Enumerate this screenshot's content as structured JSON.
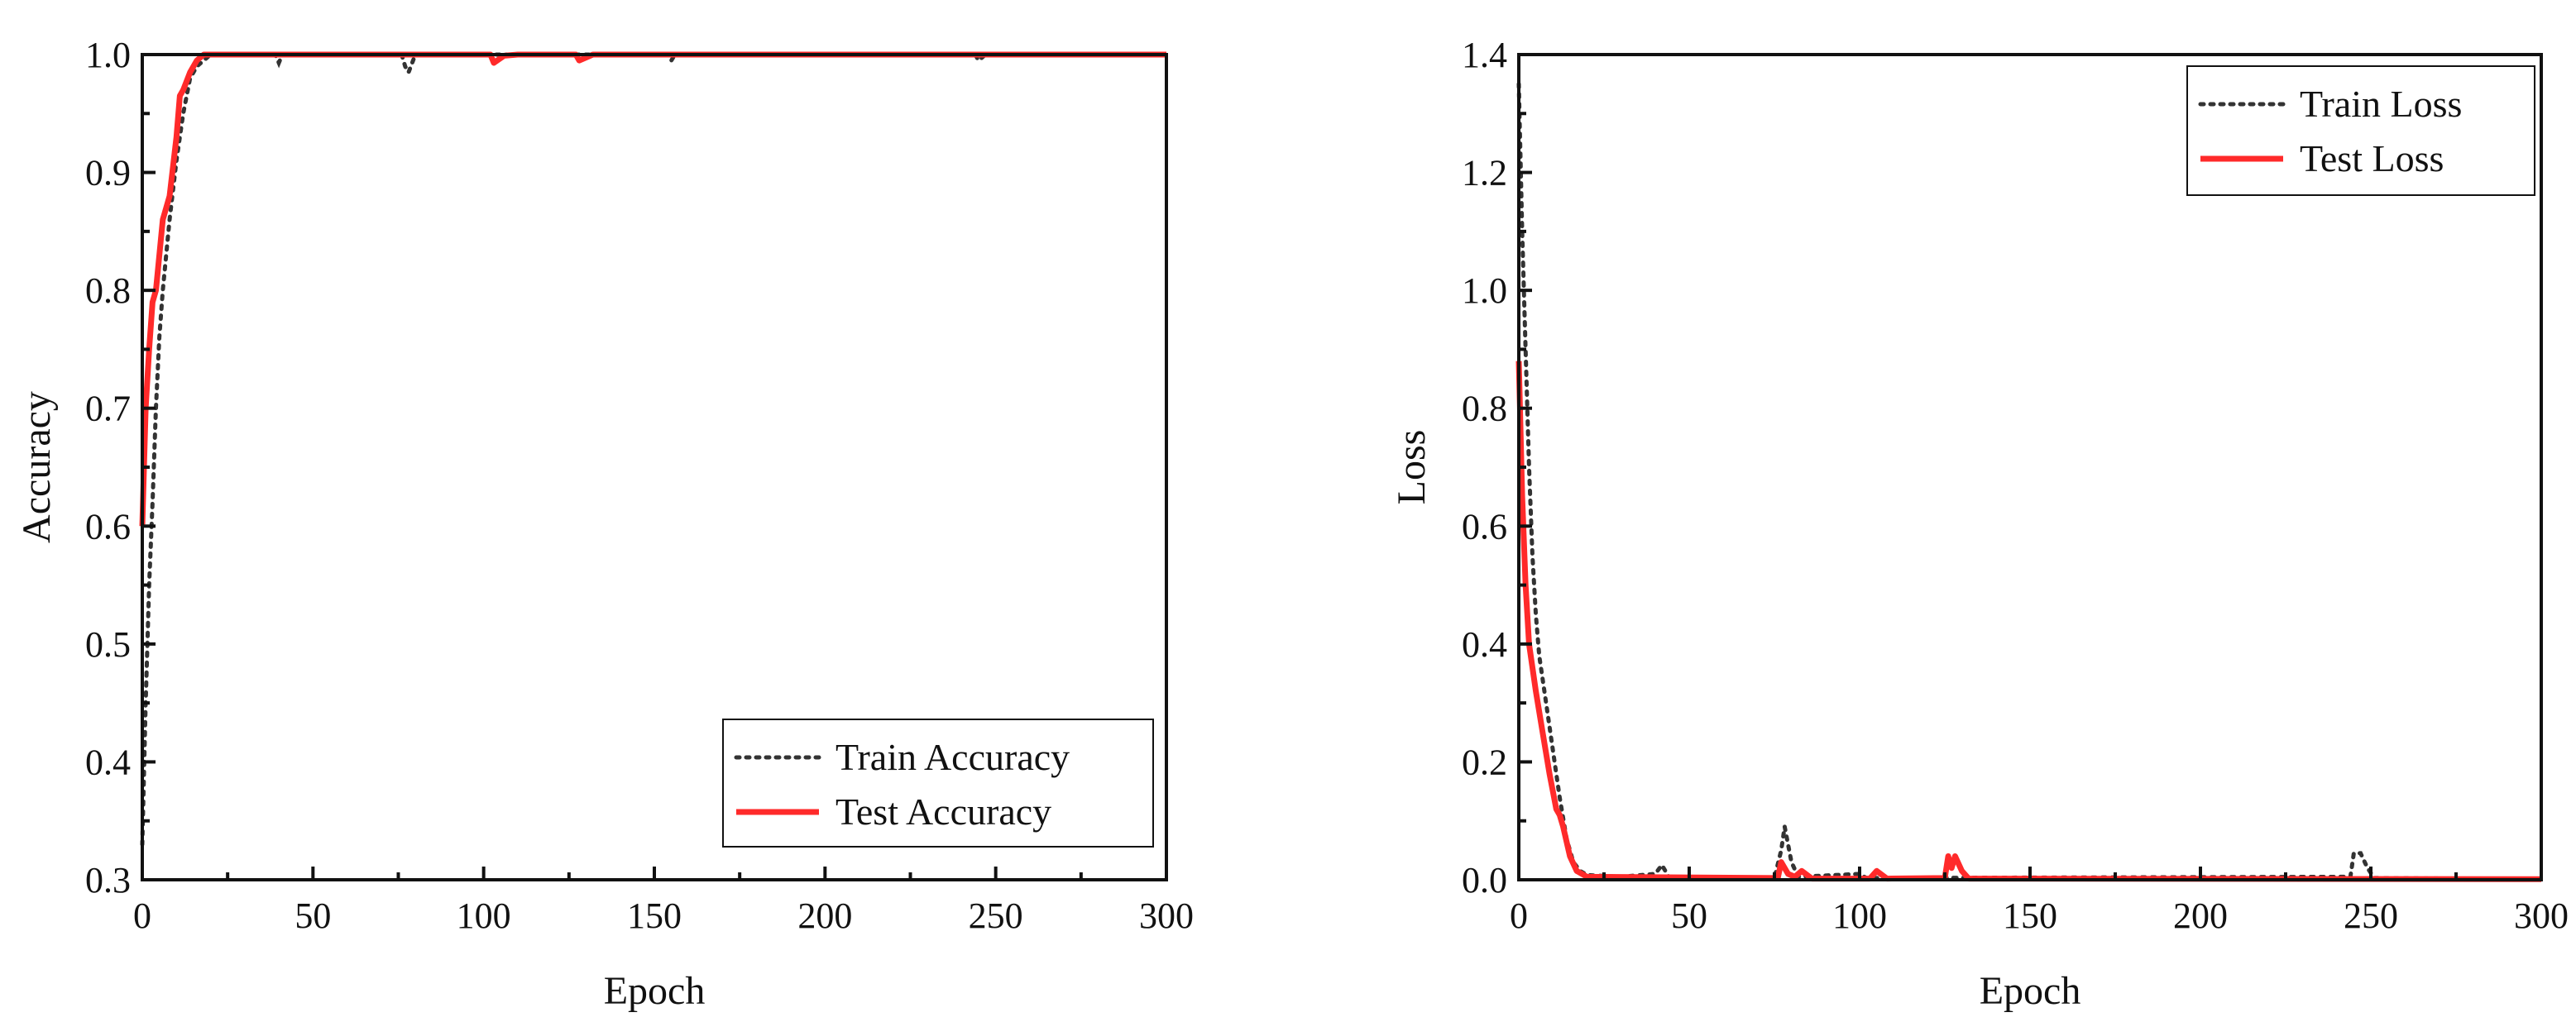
{
  "colors": {
    "train": "#333333",
    "test": "#ff2a2a",
    "axis": "#111111"
  },
  "chart_data": [
    {
      "type": "line",
      "xlabel": "Epoch",
      "ylabel": "Accuracy",
      "xlim": [
        0,
        300
      ],
      "ylim": [
        0.3,
        1.0
      ],
      "xticks": [
        0,
        50,
        100,
        150,
        200,
        250,
        300
      ],
      "xtick_labels": [
        "0",
        "50",
        "100",
        "150",
        "200",
        "250",
        "300"
      ],
      "yticks": [
        0.3,
        0.4,
        0.5,
        0.6,
        0.7,
        0.8,
        0.9,
        1.0
      ],
      "ytick_labels": [
        "0.3",
        "0.4",
        "0.5",
        "0.6",
        "0.7",
        "0.8",
        "0.9",
        "1.0"
      ],
      "legend_position": "bottom-right",
      "series": [
        {
          "name": "Train Accuracy",
          "style": "dotted",
          "points": [
            [
              0,
              0.33
            ],
            [
              1,
              0.45
            ],
            [
              2,
              0.55
            ],
            [
              3,
              0.62
            ],
            [
              4,
              0.7
            ],
            [
              5,
              0.76
            ],
            [
              6,
              0.8
            ],
            [
              8,
              0.86
            ],
            [
              10,
              0.91
            ],
            [
              12,
              0.95
            ],
            [
              14,
              0.98
            ],
            [
              16,
              0.99
            ],
            [
              18,
              0.995
            ],
            [
              20,
              1.0
            ],
            [
              39,
              1.0
            ],
            [
              40,
              0.993
            ],
            [
              41,
              1.0
            ],
            [
              76,
              1.0
            ],
            [
              77,
              0.99
            ],
            [
              78,
              0.985
            ],
            [
              80,
              1.0
            ],
            [
              154,
              1.0
            ],
            [
              155,
              0.995
            ],
            [
              156,
              1.0
            ],
            [
              244,
              1.0
            ],
            [
              245,
              0.995
            ],
            [
              247,
              1.0
            ],
            [
              300,
              1.0
            ]
          ]
        },
        {
          "name": "Test Accuracy",
          "style": "solid",
          "points": [
            [
              0,
              0.6
            ],
            [
              1,
              0.7
            ],
            [
              2,
              0.75
            ],
            [
              3,
              0.79
            ],
            [
              4,
              0.8
            ],
            [
              6,
              0.86
            ],
            [
              8,
              0.88
            ],
            [
              10,
              0.93
            ],
            [
              11,
              0.965
            ],
            [
              12,
              0.97
            ],
            [
              14,
              0.985
            ],
            [
              16,
              0.995
            ],
            [
              18,
              1.0
            ],
            [
              102,
              1.0
            ],
            [
              103,
              0.993
            ],
            [
              106,
              0.999
            ],
            [
              110,
              1.0
            ],
            [
              127,
              1.0
            ],
            [
              128,
              0.995
            ],
            [
              132,
              1.0
            ],
            [
              300,
              1.0
            ]
          ]
        }
      ]
    },
    {
      "type": "line",
      "xlabel": "Epoch",
      "ylabel": "Loss",
      "xlim": [
        0,
        300
      ],
      "ylim": [
        0.0,
        1.4
      ],
      "xticks": [
        0,
        50,
        100,
        150,
        200,
        250,
        300
      ],
      "xtick_labels": [
        "0",
        "50",
        "100",
        "150",
        "200",
        "250",
        "300"
      ],
      "yticks": [
        0.0,
        0.2,
        0.4,
        0.6,
        0.8,
        1.0,
        1.2,
        1.4
      ],
      "ytick_labels": [
        "0.0",
        "0.2",
        "0.4",
        "0.6",
        "0.8",
        "1.0",
        "1.2",
        "1.4"
      ],
      "legend_position": "top-right",
      "series": [
        {
          "name": "Train Loss",
          "style": "dotted",
          "points": [
            [
              0,
              1.35
            ],
            [
              1,
              1.1
            ],
            [
              2,
              0.9
            ],
            [
              3,
              0.7
            ],
            [
              4,
              0.55
            ],
            [
              5,
              0.45
            ],
            [
              6,
              0.38
            ],
            [
              8,
              0.3
            ],
            [
              10,
              0.22
            ],
            [
              12,
              0.14
            ],
            [
              14,
              0.07
            ],
            [
              16,
              0.03
            ],
            [
              18,
              0.015
            ],
            [
              20,
              0.008
            ],
            [
              30,
              0.005
            ],
            [
              40,
              0.01
            ],
            [
              42,
              0.025
            ],
            [
              44,
              0.005
            ],
            [
              75,
              0.003
            ],
            [
              77,
              0.05
            ],
            [
              78,
              0.09
            ],
            [
              80,
              0.03
            ],
            [
              82,
              0.005
            ],
            [
              100,
              0.01
            ],
            [
              102,
              0.003
            ],
            [
              244,
              0.005
            ],
            [
              245,
              0.045
            ],
            [
              247,
              0.045
            ],
            [
              249,
              0.02
            ],
            [
              251,
              0.003
            ],
            [
              300,
              0.001
            ]
          ]
        },
        {
          "name": "Test Loss",
          "style": "solid",
          "points": [
            [
              0,
              0.88
            ],
            [
              1,
              0.65
            ],
            [
              2,
              0.5
            ],
            [
              3,
              0.4
            ],
            [
              5,
              0.32
            ],
            [
              7,
              0.25
            ],
            [
              9,
              0.18
            ],
            [
              11,
              0.12
            ],
            [
              12,
              0.11
            ],
            [
              13,
              0.09
            ],
            [
              15,
              0.04
            ],
            [
              17,
              0.015
            ],
            [
              20,
              0.005
            ],
            [
              76,
              0.003
            ],
            [
              77,
              0.03
            ],
            [
              79,
              0.01
            ],
            [
              81,
              0.005
            ],
            [
              83,
              0.015
            ],
            [
              86,
              0.002
            ],
            [
              103,
              0.002
            ],
            [
              105,
              0.015
            ],
            [
              108,
              0.002
            ],
            [
              125,
              0.003
            ],
            [
              126,
              0.04
            ],
            [
              127,
              0.02
            ],
            [
              128,
              0.04
            ],
            [
              130,
              0.015
            ],
            [
              132,
              0.002
            ],
            [
              300,
              0.001
            ]
          ]
        }
      ]
    }
  ]
}
